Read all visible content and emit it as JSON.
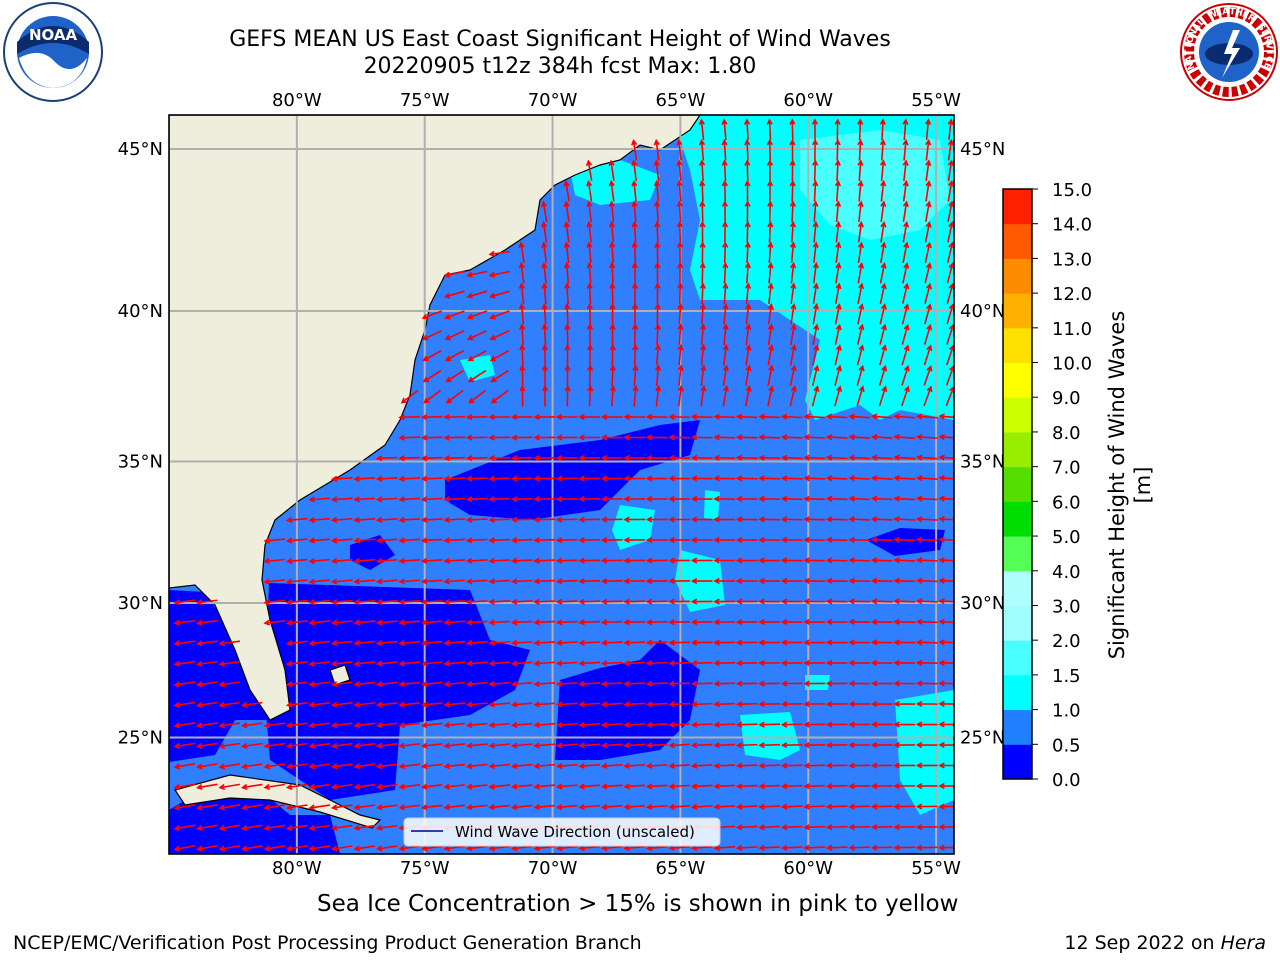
{
  "header": {
    "title_line1": "GEFS MEAN US East Coast Significant Height of Wind Waves",
    "title_line2": "20220905 t12z 384h fcst   Max: 1.80"
  },
  "map": {
    "lon_labels": [
      "80°W",
      "75°W",
      "70°W",
      "65°W",
      "60°W",
      "55°W"
    ],
    "lat_labels": [
      "45°N",
      "40°N",
      "35°N",
      "30°N",
      "25°N"
    ],
    "lon_range": [
      -85,
      -54.3
    ],
    "lat_range": [
      20.5,
      46
    ],
    "colors": {
      "land": "#efeedd",
      "water_level0": "#0000ff",
      "water_level1": "#2f7fff",
      "water_level2": "#00ffff",
      "water_level3": "#49ffff",
      "arrow": "#ff0000",
      "grid": "#b0b0b0"
    },
    "arrow_direction": "mostly toward the west, northward in the northeast",
    "legend": {
      "label": "Wind Wave Direction (unscaled)"
    }
  },
  "colorbar": {
    "label": "Significant Height of Wind Waves [m]",
    "levels": [
      "0.0",
      "0.5",
      "1.0",
      "1.5",
      "2.0",
      "3.0",
      "4.0",
      "5.0",
      "6.0",
      "7.0",
      "8.0",
      "9.0",
      "10.0",
      "11.0",
      "12.0",
      "13.0",
      "14.0",
      "15.0"
    ],
    "colors": [
      "#0000ff",
      "#1f7fff",
      "#00ffff",
      "#49ffff",
      "#9fffff",
      "#b0ffff",
      "#55ff55",
      "#00dd00",
      "#55dd00",
      "#99ee00",
      "#ccff00",
      "#ffff00",
      "#ffe000",
      "#ffb000",
      "#ff8c00",
      "#ff5a00",
      "#ff2000",
      "#ff0000"
    ]
  },
  "footer": {
    "note": "Sea Ice Concentration > 15% is shown in pink to yellow",
    "credit": "NCEP/EMC/Verification Post Processing Product Generation Branch",
    "stamp_prefix": "12 Sep 2022 on ",
    "stamp_host": "Hera"
  },
  "logos": {
    "noaa": "NOAA",
    "nws": "NATIONAL WEATHER SERVICE"
  }
}
